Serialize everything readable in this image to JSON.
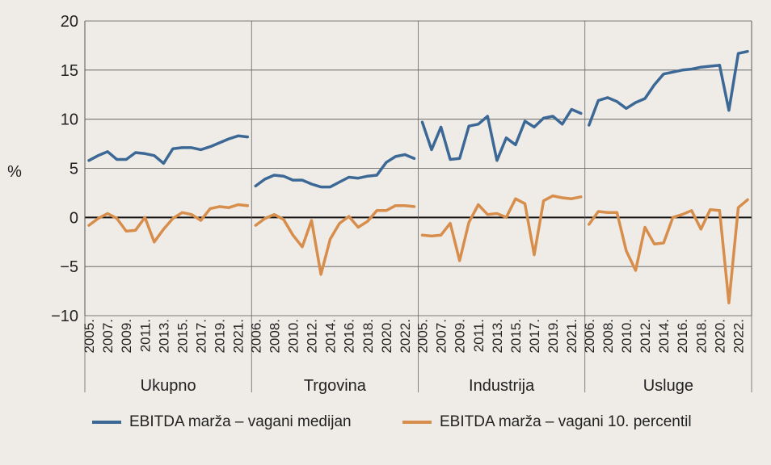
{
  "chart_data": {
    "type": "line",
    "ylabel": "%",
    "ylim": [
      -10,
      20
    ],
    "yticks": [
      -10,
      -5,
      0,
      5,
      10,
      15,
      20
    ],
    "colors": {
      "median": "#3c6896",
      "percentile": "#d78e4c"
    },
    "legend": [
      {
        "key": "median",
        "label": "EBITDA marža – vagani medijan"
      },
      {
        "key": "percentile",
        "label": "EBITDA marža – vagani 10. percentil"
      }
    ],
    "panels": [
      {
        "name": "Ukupno",
        "tick_labels": [
          "2005.",
          "2007.",
          "2009.",
          "2011.",
          "2013.",
          "2015.",
          "2017.",
          "2019.",
          "2021."
        ],
        "median": [
          5.8,
          6.3,
          6.7,
          5.9,
          5.9,
          6.6,
          6.5,
          6.3,
          5.5,
          7.0,
          7.1,
          7.1,
          6.9,
          7.2,
          7.6,
          8.0,
          8.3,
          8.2
        ],
        "percentile": [
          -0.8,
          -0.1,
          0.4,
          -0.1,
          -1.4,
          -1.3,
          0.0,
          -2.5,
          -1.2,
          -0.1,
          0.5,
          0.3,
          -0.3,
          0.9,
          1.1,
          1.0,
          1.3,
          1.2
        ]
      },
      {
        "name": "Trgovina",
        "tick_labels": [
          "2006.",
          "2008.",
          "2010.",
          "2012.",
          "2014.",
          "2016.",
          "2018.",
          "2020.",
          "2022."
        ],
        "median": [
          3.2,
          3.9,
          4.3,
          4.2,
          3.8,
          3.8,
          3.4,
          3.1,
          3.1,
          3.6,
          4.1,
          4.0,
          4.2,
          4.3,
          5.6,
          6.2,
          6.4,
          6.0
        ],
        "percentile": [
          -0.8,
          -0.1,
          0.3,
          -0.2,
          -1.8,
          -3.0,
          -0.3,
          -5.8,
          -2.2,
          -0.6,
          0.1,
          -1.0,
          -0.4,
          0.7,
          0.7,
          1.2,
          1.2,
          1.1
        ]
      },
      {
        "name": "Industrija",
        "tick_labels": [
          "2005.",
          "2007.",
          "2009.",
          "2011.",
          "2013.",
          "2015.",
          "2017.",
          "2019.",
          "2021."
        ],
        "median": [
          9.7,
          6.9,
          9.2,
          5.9,
          6.0,
          9.3,
          9.5,
          10.3,
          5.8,
          8.1,
          7.4,
          9.8,
          9.2,
          10.1,
          10.3,
          9.5,
          11.0,
          10.6
        ],
        "percentile": [
          -1.8,
          -1.9,
          -1.8,
          -0.6,
          -4.4,
          -0.5,
          1.3,
          0.3,
          0.4,
          0.0,
          1.9,
          1.4,
          -3.8,
          1.7,
          2.2,
          2.0,
          1.9,
          2.1
        ]
      },
      {
        "name": "Usluge",
        "tick_labels": [
          "2006.",
          "2008.",
          "2010.",
          "2012.",
          "2014.",
          "2016.",
          "2018.",
          "2020.",
          "2022."
        ],
        "median": [
          9.4,
          11.9,
          12.2,
          11.8,
          11.1,
          11.7,
          12.1,
          13.5,
          14.6,
          14.8,
          15.0,
          15.1,
          15.3,
          15.4,
          15.5,
          10.9,
          16.7,
          16.9
        ],
        "percentile": [
          -0.7,
          0.6,
          0.5,
          0.5,
          -3.4,
          -5.4,
          -1.0,
          -2.7,
          -2.6,
          0.0,
          0.3,
          0.7,
          -1.2,
          0.8,
          0.7,
          -8.7,
          1.0,
          1.8
        ]
      }
    ]
  }
}
